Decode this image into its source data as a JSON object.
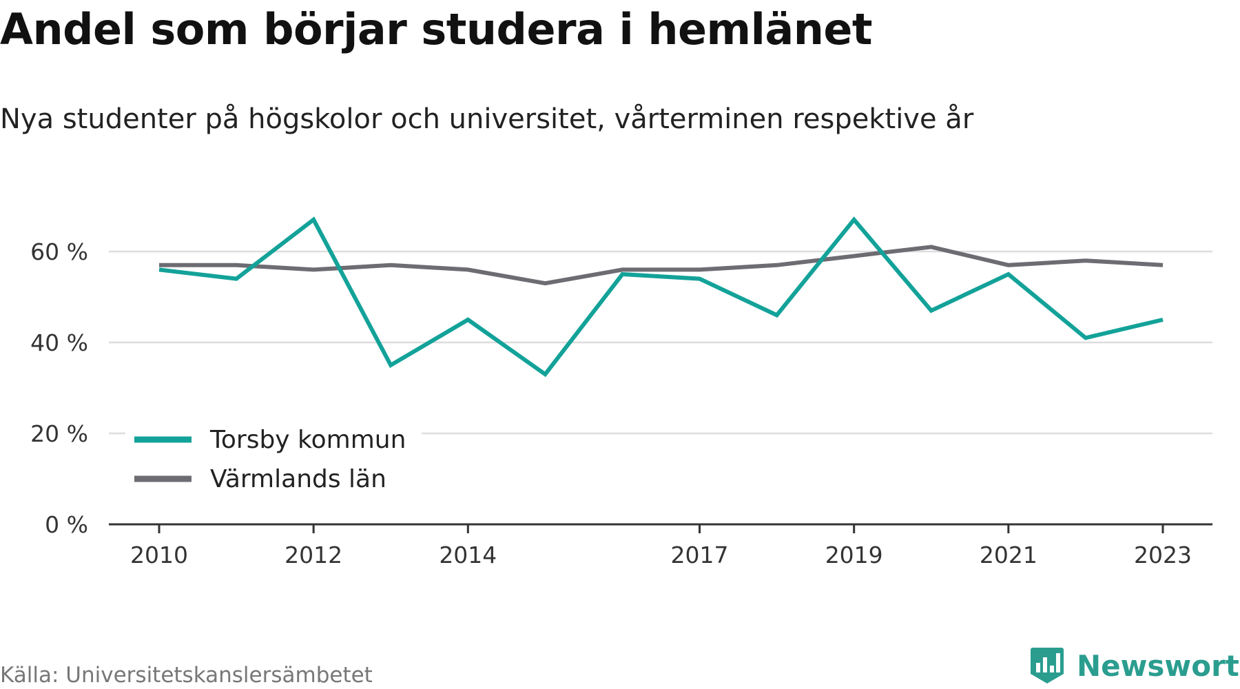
{
  "title": "Andel som börjar studera i hemlänet",
  "subtitle": "Nya studenter på högskolor och universitet, vårterminen respektive år",
  "source": "Källa: Universitetskanslersämbetet",
  "brand": "Newsworthy",
  "colors": {
    "torsby": "#13a299",
    "varmland": "#6e6c73",
    "grid": "#dddddd",
    "axis": "#333333",
    "brand": "#2a9d8f"
  },
  "chart_data": {
    "type": "line",
    "x": [
      2010,
      2011,
      2012,
      2013,
      2014,
      2015,
      2016,
      2017,
      2018,
      2019,
      2020,
      2021,
      2022,
      2023
    ],
    "xticks": [
      2010,
      2012,
      2014,
      2017,
      2019,
      2021,
      2023
    ],
    "xtick_labels": [
      "2010",
      "2012",
      "2014",
      "2017",
      "2019",
      "2021",
      "2023"
    ],
    "yticks": [
      0,
      20,
      40,
      60
    ],
    "ytick_labels": [
      "0 %",
      "20 %",
      "40 %",
      "60 %"
    ],
    "ylim": [
      0,
      70
    ],
    "grid": true,
    "legend_position": "bottom-left",
    "series": [
      {
        "name": "Torsby kommun",
        "color": "#13a299",
        "values": [
          56,
          54,
          67,
          35,
          45,
          33,
          55,
          54,
          46,
          67,
          47,
          55,
          41,
          45
        ]
      },
      {
        "name": "Värmlands län",
        "color": "#6e6c73",
        "values": [
          57,
          57,
          56,
          57,
          56,
          53,
          56,
          56,
          57,
          59,
          61,
          57,
          58,
          57
        ]
      }
    ]
  }
}
